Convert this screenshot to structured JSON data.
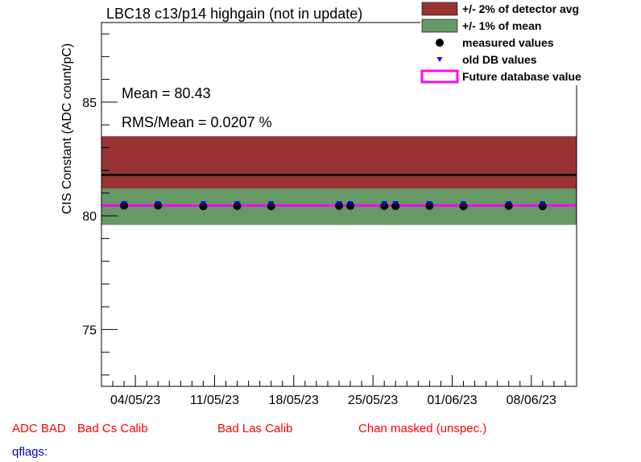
{
  "chart_data": {
    "type": "scatter",
    "title": "LBC18 c13/p14 highgain (not in update)",
    "ylabel": "CIS Constant (ADC count/pC)",
    "xlabel": "",
    "ylim": [
      72.5,
      88.5
    ],
    "yticks": [
      75,
      80,
      85
    ],
    "xlim": [
      "2023-05-01",
      "2023-06-12"
    ],
    "xtick_labels": [
      "04/05/23",
      "11/05/23",
      "18/05/23",
      "25/05/23",
      "01/06/23",
      "08/06/23"
    ],
    "xtick_dates": [
      "2023-05-04",
      "2023-05-11",
      "2023-05-18",
      "2023-05-25",
      "2023-06-01",
      "2023-06-08"
    ],
    "detector_avg": 81.8,
    "band_2pct_detector_avg": [
      80.2,
      83.5
    ],
    "band_1pct_mean": [
      79.6,
      81.2
    ],
    "future_db_value": 80.45,
    "series": [
      {
        "name": "measured values",
        "x": [
          "2023-05-03",
          "2023-05-06",
          "2023-05-10",
          "2023-05-13",
          "2023-05-16",
          "2023-05-22",
          "2023-05-23",
          "2023-05-26",
          "2023-05-27",
          "2023-05-30",
          "2023-06-02",
          "2023-06-06",
          "2023-06-09"
        ],
        "y": [
          80.45,
          80.45,
          80.42,
          80.43,
          80.42,
          80.44,
          80.44,
          80.43,
          80.43,
          80.44,
          80.42,
          80.44,
          80.42
        ]
      },
      {
        "name": "old DB values",
        "x": [
          "2023-05-03",
          "2023-05-06",
          "2023-05-10",
          "2023-05-13",
          "2023-05-16",
          "2023-05-22",
          "2023-05-23",
          "2023-05-26",
          "2023-05-27",
          "2023-05-30",
          "2023-06-02",
          "2023-06-06",
          "2023-06-09"
        ],
        "y": [
          80.5,
          80.5,
          80.5,
          80.5,
          80.5,
          80.5,
          80.5,
          80.5,
          80.5,
          80.5,
          80.5,
          80.5,
          80.5
        ]
      }
    ],
    "legend": [
      {
        "label": "+/- 2% of detector avg",
        "color": "#993333",
        "kind": "box"
      },
      {
        "label": "+/- 1% of mean",
        "color": "#669966",
        "kind": "box"
      },
      {
        "label": "measured values",
        "color": "#000000",
        "kind": "circle"
      },
      {
        "label": "old DB values",
        "color": "#0000ff",
        "kind": "triangle"
      },
      {
        "label": "Future database value",
        "color": "#ff00ff",
        "kind": "line"
      }
    ],
    "legend_position": "top-right",
    "stats": {
      "mean_text": "Mean = 80.43",
      "rms_text": "RMS/Mean = 0.0207 %"
    }
  },
  "colors": {
    "band_2pct": "#993333",
    "band_1pct": "#669966",
    "avg_line": "#000000",
    "future_line": "#ff00ff",
    "measured": "#000000",
    "olddb": "#0000ff"
  },
  "footer": {
    "flags": [
      "ADC BAD",
      "Bad Cs Calib",
      "Bad Las Calib",
      "Chan masked (unspec.)"
    ],
    "qflags": "qflags:"
  }
}
